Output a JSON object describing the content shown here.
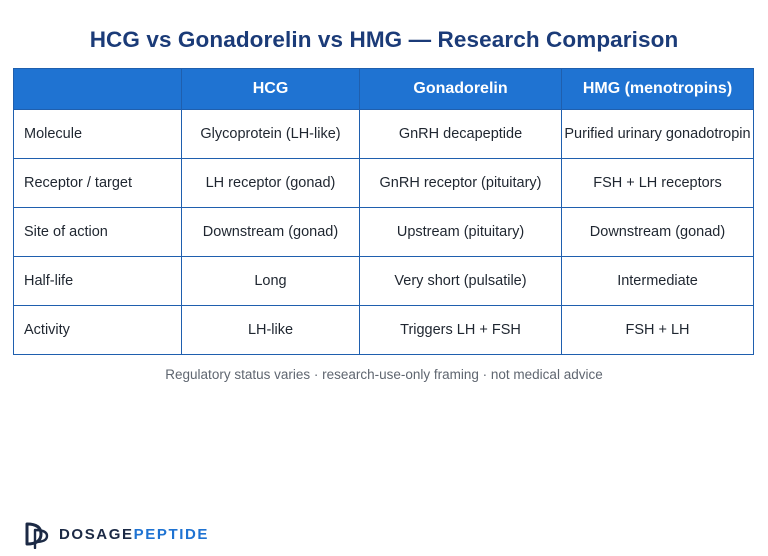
{
  "title": "HCG vs Gonadorelin vs HMG — Research Comparison",
  "table": {
    "headers": [
      "",
      "HCG",
      "Gonadorelin",
      "HMG (menotropins)"
    ],
    "rows": [
      [
        "Molecule",
        "Glycoprotein (LH-like)",
        "GnRH decapeptide",
        "Purified urinary gonadotropin"
      ],
      [
        "Receptor / target",
        "LH receptor (gonad)",
        "GnRH receptor (pituitary)",
        "FSH + LH receptors"
      ],
      [
        "Site of action",
        "Downstream (gonad)",
        "Upstream (pituitary)",
        "Downstream (gonad)"
      ],
      [
        "Half-life",
        "Long",
        "Very short (pulsatile)",
        "Intermediate"
      ],
      [
        "Activity",
        "LH-like",
        "Triggers LH + FSH",
        "FSH + LH"
      ]
    ]
  },
  "footnote": "Regulatory status varies · research-use-only framing · not medical advice",
  "brand": {
    "part1": "DOSAGE",
    "part2": "PEPTIDE",
    "logo_icon": "dp-monogram-icon"
  },
  "colors": {
    "title": "#1b3b78",
    "header_bg": "#1f73d2",
    "border": "#1f5fae",
    "brand_dark": "#1c2a45",
    "brand_accent": "#1f73d2"
  }
}
